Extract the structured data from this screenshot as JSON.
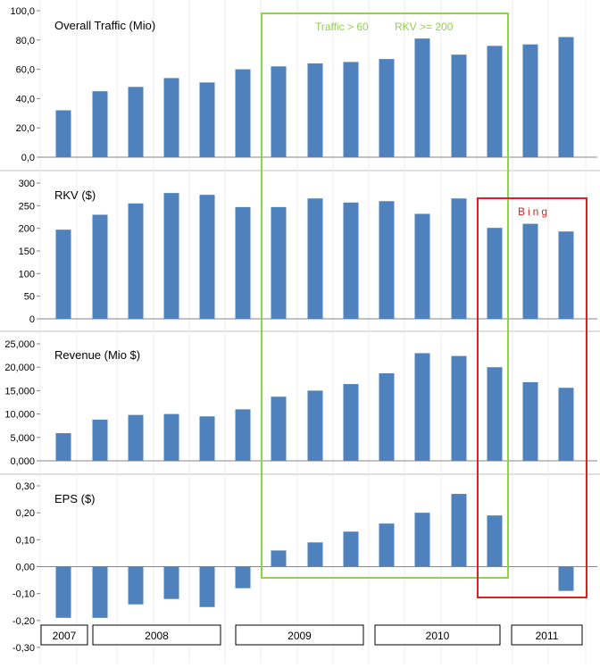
{
  "colors": {
    "bar": "#4f81bd",
    "traffic_box": "#92d050",
    "bing_box": "#e02020",
    "grid": "#d9d9d9",
    "axis": "#868686"
  },
  "annotations": {
    "traffic_rule": "Traffic > 60",
    "rkv_rule": "RKV  >= 200",
    "bing": "Bing"
  },
  "year_labels": [
    "2007",
    "2008",
    "2009",
    "2010",
    "2011"
  ],
  "chart_data": [
    {
      "type": "bar",
      "title": "Overall Traffic (Mio)",
      "ylim": [
        0,
        100
      ],
      "yticks": [
        "0,0",
        "20,0",
        "40,0",
        "60,0",
        "80,0",
        "100,0"
      ],
      "values": [
        32,
        45,
        48,
        54,
        51,
        60,
        62,
        64,
        65,
        67,
        81,
        70,
        76,
        77,
        82
      ]
    },
    {
      "type": "bar",
      "title": "RKV ($)",
      "ylim": [
        0,
        300
      ],
      "yticks": [
        "0",
        "50",
        "100",
        "150",
        "200",
        "250",
        "300"
      ],
      "values": [
        197,
        230,
        255,
        278,
        274,
        247,
        247,
        266,
        257,
        260,
        232,
        266,
        201,
        210,
        193
      ]
    },
    {
      "type": "bar",
      "title": "Revenue (Mio $)",
      "ylim": [
        0,
        25000
      ],
      "yticks": [
        "0,000",
        "5,000",
        "10,000",
        "15,000",
        "20,000",
        "25,000"
      ],
      "values": [
        5900,
        8800,
        9800,
        10000,
        9500,
        11000,
        13700,
        15000,
        16400,
        18700,
        23000,
        22400,
        20000,
        16800,
        15600
      ]
    },
    {
      "type": "bar",
      "title": "EPS ($)",
      "ylim": [
        -0.3,
        0.3
      ],
      "yticks": [
        "-0,30",
        "-0,20",
        "-0,10",
        "0,00",
        "0,10",
        "0,20",
        "0,30"
      ],
      "values": [
        -0.19,
        -0.19,
        -0.14,
        -0.12,
        -0.15,
        -0.08,
        0.06,
        0.09,
        0.13,
        0.16,
        0.2,
        0.27,
        0.19,
        null,
        -0.09
      ]
    }
  ]
}
